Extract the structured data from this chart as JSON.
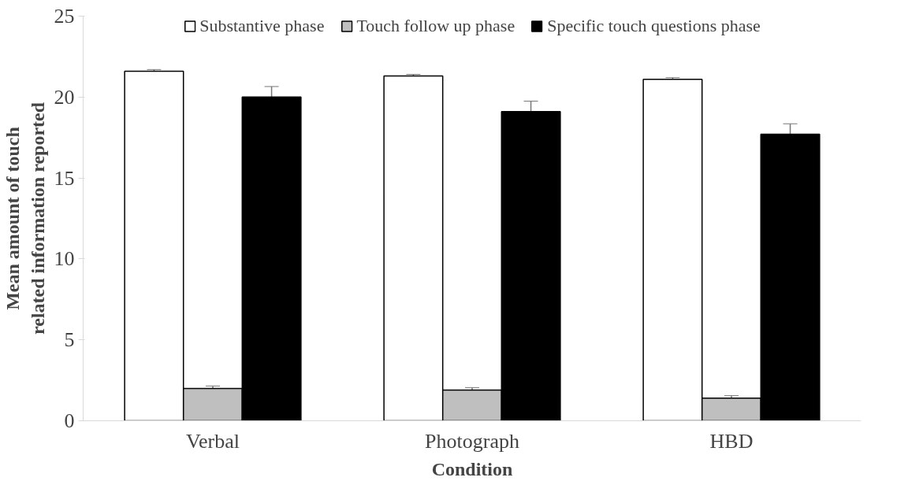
{
  "chart_data": {
    "type": "bar",
    "xlabel": "Condition",
    "ylabel": "Mean amount of touch related information reported",
    "categories": [
      "Verbal",
      "Photograph",
      "HBD"
    ],
    "series": [
      {
        "name": "Substantive phase",
        "color": "#ffffff",
        "values": [
          21.6,
          21.3,
          21.1
        ],
        "errors": [
          0.1,
          0.1,
          0.1
        ]
      },
      {
        "name": "Touch follow up phase",
        "color": "#bfbfbf",
        "values": [
          2.0,
          1.9,
          1.4
        ],
        "errors": [
          0.15,
          0.15,
          0.15
        ]
      },
      {
        "name": "Specific touch questions phase",
        "color": "#000000",
        "values": [
          20.0,
          19.1,
          17.7
        ],
        "errors": [
          0.65,
          0.65,
          0.65
        ]
      }
    ],
    "ylim": [
      0,
      25
    ],
    "yticks": [
      0,
      5,
      10,
      15,
      20,
      25
    ],
    "grid": false,
    "legend": "top"
  }
}
